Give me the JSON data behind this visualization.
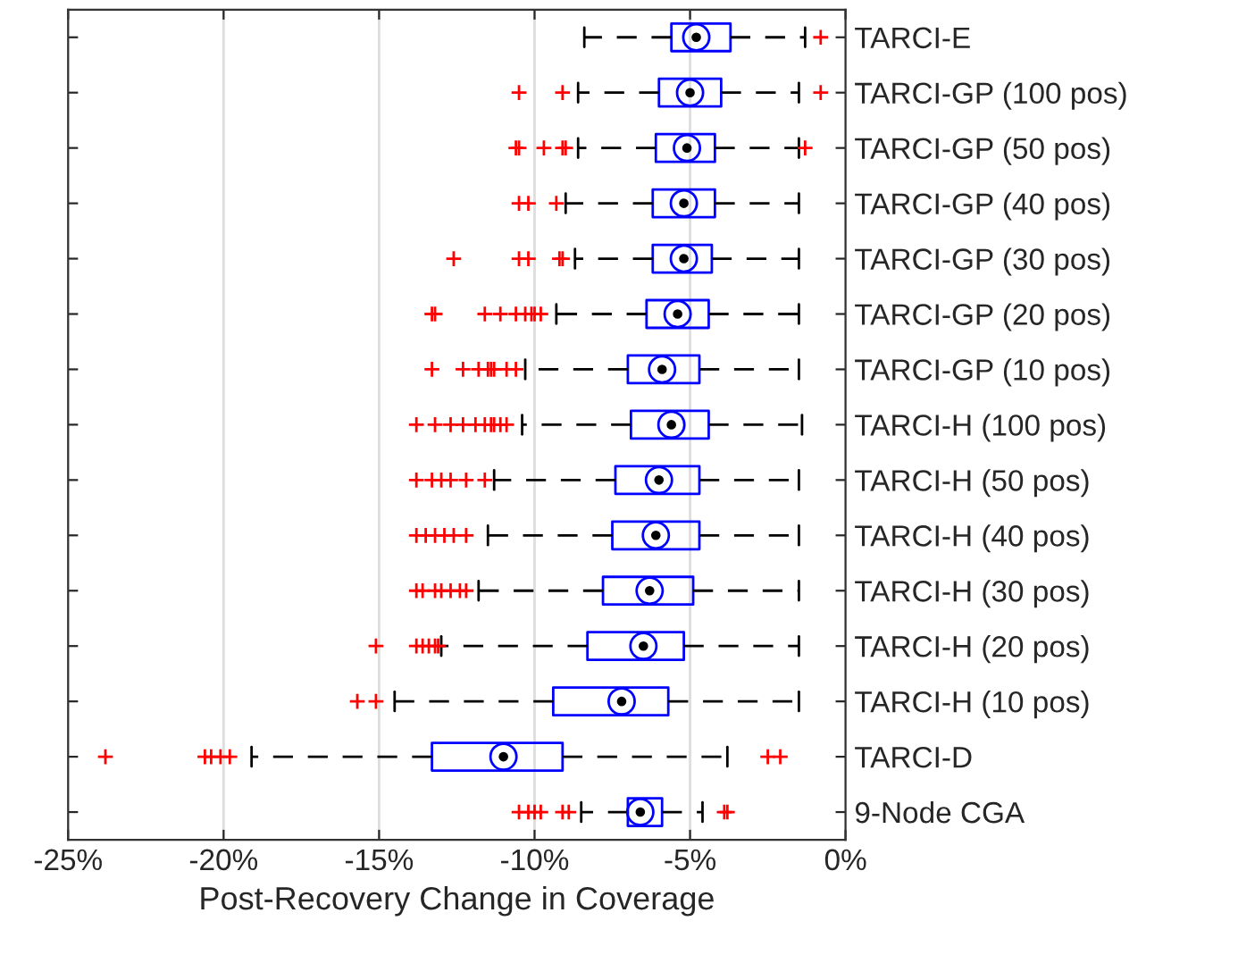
{
  "chart_data": {
    "type": "box",
    "orientation": "horizontal",
    "xlabel": "Post-Recovery Change in Coverage",
    "grid": "x",
    "categories": [
      "TARCI-E",
      "TARCI-GP (100 pos)",
      "TARCI-GP (50 pos)",
      "TARCI-GP (40 pos)",
      "TARCI-GP (30 pos)",
      "TARCI-GP (20 pos)",
      "TARCI-GP (10 pos)",
      "TARCI-H (100 pos)",
      "TARCI-H (50 pos)",
      "TARCI-H (40 pos)",
      "TARCI-H (30 pos)",
      "TARCI-H (20 pos)",
      "TARCI-H (10 pos)",
      "TARCI-D",
      "9-Node CGA"
    ],
    "xlim": [
      -25,
      0
    ],
    "xticks": [
      {
        "value": -25,
        "label": "-25%"
      },
      {
        "value": -20,
        "label": "-20%"
      },
      {
        "value": -15,
        "label": "-15%"
      },
      {
        "value": -10,
        "label": "-10%"
      },
      {
        "value": -5,
        "label": "-5%"
      },
      {
        "value": 0,
        "label": "0%"
      }
    ],
    "series": [
      {
        "color": "#0000ff",
        "boxes": [
          {
            "low": -8.4,
            "q1": -5.6,
            "median": -4.8,
            "q3": -3.7,
            "high": -1.3,
            "outliers": [
              -0.8
            ]
          },
          {
            "low": -8.6,
            "q1": -6.0,
            "median": -5.0,
            "q3": -4.0,
            "high": -1.5,
            "outliers": [
              -10.5,
              -9.1,
              -0.8
            ]
          },
          {
            "low": -8.6,
            "q1": -6.1,
            "median": -5.1,
            "q3": -4.2,
            "high": -1.5,
            "outliers": [
              -10.6,
              -10.5,
              -9.7,
              -9.1,
              -9.0,
              -1.3
            ]
          },
          {
            "low": -9.0,
            "q1": -6.2,
            "median": -5.2,
            "q3": -4.2,
            "high": -1.5,
            "outliers": [
              -10.5,
              -10.2,
              -9.3
            ]
          },
          {
            "low": -8.7,
            "q1": -6.2,
            "median": -5.2,
            "q3": -4.3,
            "high": -1.5,
            "outliers": [
              -12.6,
              -10.5,
              -10.2,
              -9.2,
              -9.1
            ]
          },
          {
            "low": -9.3,
            "q1": -6.4,
            "median": -5.4,
            "q3": -4.4,
            "high": -1.5,
            "outliers": [
              -13.3,
              -13.2,
              -11.6,
              -11.1,
              -10.6,
              -10.3,
              -10.1,
              -10.0,
              -9.8
            ]
          },
          {
            "low": -10.3,
            "q1": -7.0,
            "median": -5.9,
            "q3": -4.7,
            "high": -1.5,
            "outliers": [
              -13.3,
              -12.3,
              -11.8,
              -11.5,
              -11.4,
              -11.3,
              -10.9,
              -10.6
            ]
          },
          {
            "low": -10.4,
            "q1": -6.9,
            "median": -5.6,
            "q3": -4.4,
            "high": -1.4,
            "outliers": [
              -13.8,
              -13.2,
              -12.7,
              -12.3,
              -11.9,
              -11.6,
              -11.4,
              -11.3,
              -11.1,
              -10.9
            ]
          },
          {
            "low": -11.3,
            "q1": -7.4,
            "median": -6.0,
            "q3": -4.7,
            "high": -1.5,
            "outliers": [
              -13.8,
              -13.3,
              -13.0,
              -12.7,
              -12.2,
              -11.6
            ]
          },
          {
            "low": -11.5,
            "q1": -7.5,
            "median": -6.1,
            "q3": -4.7,
            "high": -1.5,
            "outliers": [
              -13.8,
              -13.5,
              -13.2,
              -12.9,
              -12.6,
              -12.2
            ]
          },
          {
            "low": -11.8,
            "q1": -7.8,
            "median": -6.3,
            "q3": -4.9,
            "high": -1.5,
            "outliers": [
              -13.8,
              -13.6,
              -13.2,
              -13.0,
              -12.7,
              -12.4,
              -12.2
            ]
          },
          {
            "low": -13.0,
            "q1": -8.3,
            "median": -6.5,
            "q3": -5.2,
            "high": -1.5,
            "outliers": [
              -15.1,
              -13.8,
              -13.6,
              -13.4,
              -13.2,
              -13.1
            ]
          },
          {
            "low": -14.5,
            "q1": -9.4,
            "median": -7.2,
            "q3": -5.7,
            "high": -1.5,
            "outliers": [
              -15.7,
              -15.1
            ]
          },
          {
            "low": -19.1,
            "q1": -13.3,
            "median": -11.0,
            "q3": -9.1,
            "high": -3.8,
            "outliers": [
              -23.8,
              -20.6,
              -20.4,
              -20.1,
              -19.8,
              -2.5,
              -2.1
            ]
          },
          {
            "low": -8.5,
            "q1": -7.0,
            "median": -6.6,
            "q3": -5.9,
            "high": -4.6,
            "outliers": [
              -10.5,
              -10.2,
              -10.0,
              -9.8,
              -9.1,
              -8.9,
              -3.9,
              -3.8
            ]
          }
        ]
      }
    ]
  }
}
